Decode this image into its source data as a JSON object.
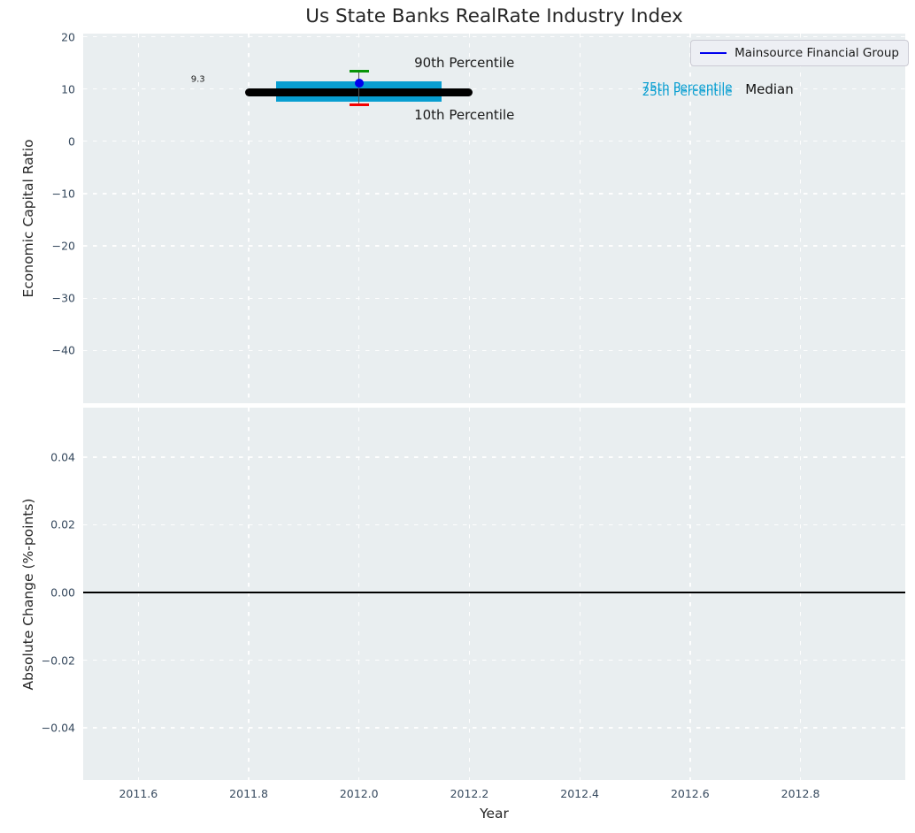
{
  "chart_data": [
    {
      "type": "box",
      "title": "Us State Banks RealRate Industry Index",
      "ylabel": "Economic Capital Ratio",
      "xlim": [
        2011.5,
        2012.99
      ],
      "ylim": [
        -50.1,
        20.6
      ],
      "grid": true,
      "xticks": {
        "values": [
          2011.6,
          2011.8,
          2012.0,
          2012.2,
          2012.4,
          2012.6,
          2012.8
        ],
        "labels": [
          "2011.6",
          "2011.8",
          "2012.0",
          "2012.2",
          "2012.4",
          "2012.6",
          "2012.8"
        ],
        "show_labels": false
      },
      "yticks": {
        "values": [
          20,
          10,
          0,
          -10,
          -20,
          -30,
          -40
        ],
        "labels": [
          "20",
          "10",
          "0",
          "−10",
          "−20",
          "−30",
          "−40"
        ]
      },
      "legend": {
        "label": "Mainsource Financial Group",
        "position": "upper right"
      },
      "series": {
        "name": "Mainsource Financial Group",
        "x": 2012.0,
        "median": 9.3,
        "p25": 7.5,
        "p75": 11.4,
        "p10": 6.9,
        "p90": 13.4,
        "company_value": 11.1,
        "box_x_start": 2011.85,
        "box_x_end": 2012.15,
        "median_x_start": 2011.8,
        "median_x_end": 2012.2,
        "cap_half_width": 0.018
      },
      "annotations": [
        {
          "text": "9.3",
          "x": 2011.708,
          "y": 11.8,
          "align": "center",
          "size": 10,
          "color": "#1a1a1a"
        },
        {
          "text": "90th Percentile",
          "x": 2012.1,
          "y": 15.0,
          "align": "left",
          "size": 15,
          "color": "#1a1a1a"
        },
        {
          "text": "10th Percentile",
          "x": 2012.1,
          "y": 5.0,
          "align": "left",
          "size": 15,
          "color": "#1a1a1a"
        },
        {
          "text": "75th Percentile",
          "x": 2012.513,
          "y": 10.3,
          "align": "left",
          "size": 13.5,
          "color": "#089ed1"
        },
        {
          "text": "25th Percentile",
          "x": 2012.513,
          "y": 9.5,
          "align": "left",
          "size": 13.5,
          "color": "#089ed1"
        },
        {
          "text": "Median",
          "x": 2012.7,
          "y": 9.9,
          "align": "left",
          "size": 15,
          "color": "#111111"
        }
      ],
      "colors": {
        "box": "#089ed1",
        "median": "#000000",
        "p90_cap": "#089408",
        "p10_cap": "#f40000",
        "marker": "#0000ee",
        "whisker": "#555555",
        "legend_line": "#0000ee"
      }
    },
    {
      "type": "line",
      "title": "",
      "ylabel": "Absolute Change (%-points)",
      "xlabel": "Year",
      "xlim": [
        2011.5,
        2012.99
      ],
      "ylim": [
        -0.0554,
        0.0546
      ],
      "grid": true,
      "xticks": {
        "values": [
          2011.6,
          2011.8,
          2012.0,
          2012.2,
          2012.4,
          2012.6,
          2012.8
        ],
        "labels": [
          "2011.6",
          "2011.8",
          "2012.0",
          "2012.2",
          "2012.4",
          "2012.6",
          "2012.8"
        ],
        "show_labels": true
      },
      "yticks": {
        "values": [
          0.04,
          0.02,
          0.0,
          -0.02,
          -0.04
        ],
        "labels": [
          "0.04",
          "0.02",
          "0.00",
          "−0.02",
          "−0.04"
        ]
      },
      "zero_line": 0.0,
      "series": []
    }
  ],
  "styles": {
    "plot_background": "#e9eef0",
    "grid_color": "#ffffff",
    "tick_color": "#36495e",
    "label_color": "#262626",
    "title_color": "#262626"
  }
}
